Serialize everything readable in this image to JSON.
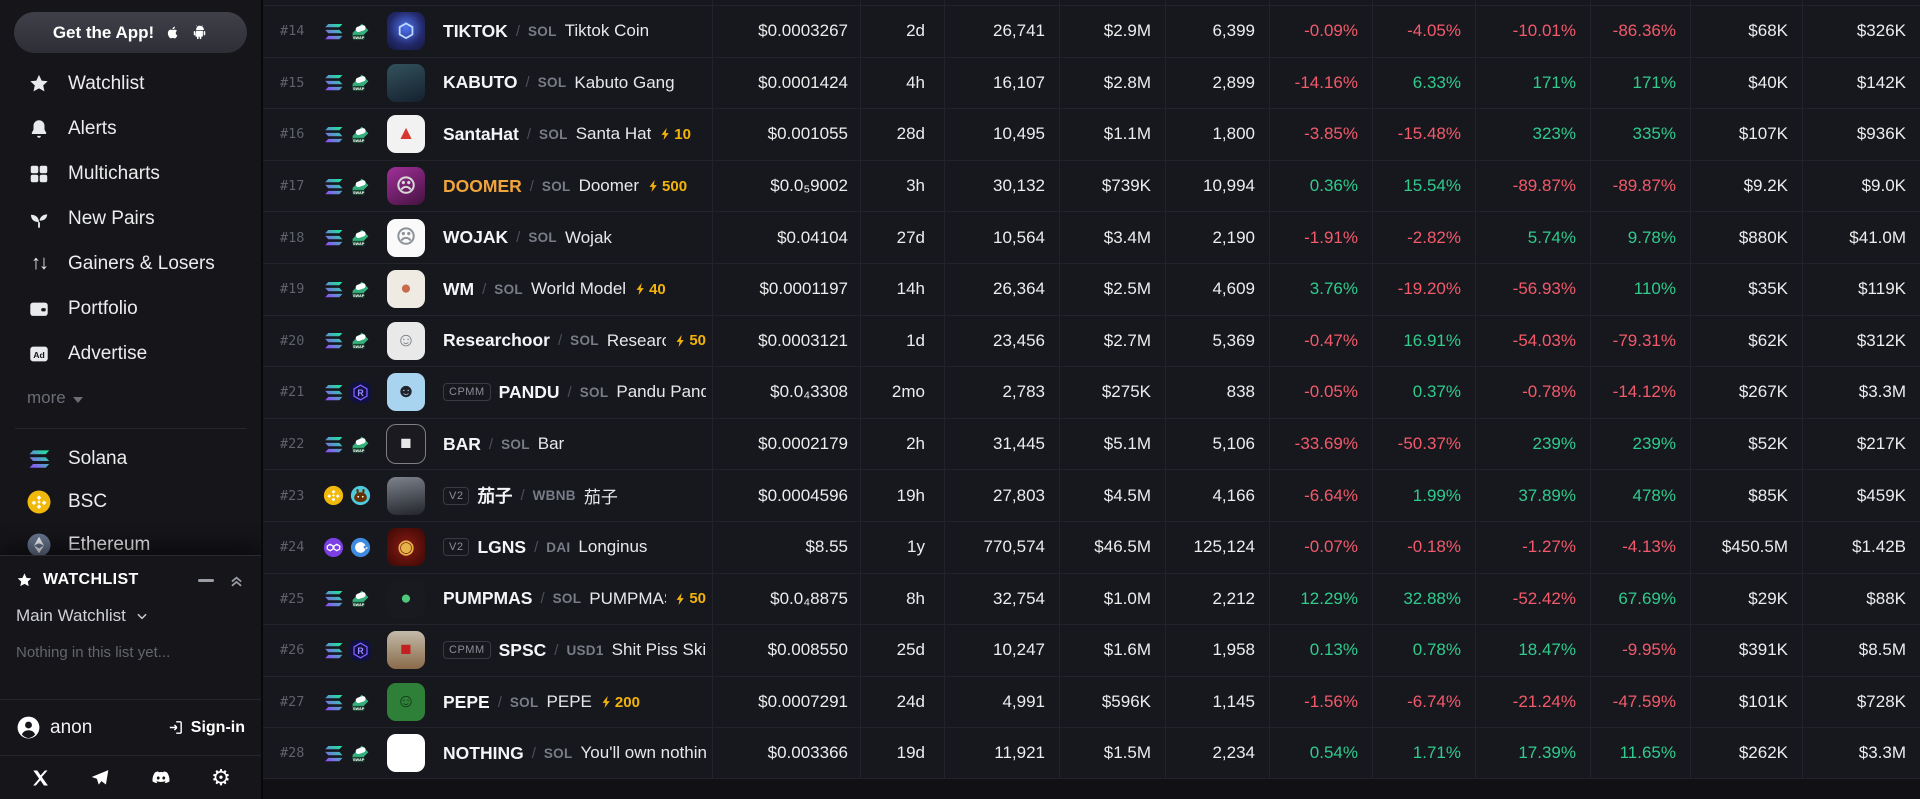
{
  "sidebar": {
    "get_app": {
      "label": "Get the App!"
    },
    "nav": [
      {
        "icon": "star-icon",
        "label": "Watchlist"
      },
      {
        "icon": "bell-icon",
        "label": "Alerts"
      },
      {
        "icon": "grid-icon",
        "label": "Multicharts"
      },
      {
        "icon": "sprout-icon",
        "label": "New Pairs"
      },
      {
        "icon": "arrows-icon",
        "label": "Gainers & Losers"
      },
      {
        "icon": "wallet-icon",
        "label": "Portfolio"
      },
      {
        "icon": "ad-icon",
        "label": "Advertise"
      }
    ],
    "more_label": "more",
    "chains": [
      {
        "icon": "solana",
        "label": "Solana"
      },
      {
        "icon": "bsc",
        "label": "BSC"
      },
      {
        "icon": "ethereum",
        "label": "Ethereum"
      }
    ],
    "watchlist_panel": {
      "title": "WATCHLIST",
      "selector": "Main Watchlist",
      "empty": "Nothing in this list yet..."
    },
    "account": {
      "name": "anon",
      "signin_label": "Sign-in"
    }
  },
  "colors": {
    "green": "#2fcc8c",
    "red": "#f35a6a",
    "gold": "#f2b40c",
    "doomer_orange": "#f0a43c"
  },
  "table": {
    "rows": [
      {
        "rank": "#14",
        "chains": [
          "solana",
          "pumpswap"
        ],
        "badge": null,
        "symbol": "TIKTOK",
        "quote": "SOL",
        "name": "Tiktok Coin",
        "boost": null,
        "avatar": {
          "bg": "radial-gradient(circle at 50% 42%, #4f74f2 0%, #232a6b 58%, #12163a 100%)",
          "glyph": "⬡",
          "fg": "#bcd9ff"
        },
        "price": "$0.0003267",
        "age": "2d",
        "txns": "26,741",
        "volume": "$2.9M",
        "makers": "6,399",
        "m5": "-0.09%",
        "h1": "-4.05%",
        "h6": "-10.01%",
        "h24": "-86.36%",
        "liquidity": "$68K",
        "mcap": "$326K"
      },
      {
        "rank": "#15",
        "chains": [
          "solana",
          "pumpswap"
        ],
        "badge": null,
        "symbol": "KABUTO",
        "quote": "SOL",
        "name": "Kabuto Gang",
        "boost": null,
        "avatar": {
          "bg": "linear-gradient(160deg,#33535c 0%,#15202e 100%)",
          "glyph": "",
          "fg": "#fff"
        },
        "price": "$0.0001424",
        "age": "4h",
        "txns": "16,107",
        "volume": "$2.8M",
        "makers": "2,899",
        "m5": "-14.16%",
        "h1": "6.33%",
        "h6": "171%",
        "h24": "171%",
        "liquidity": "$40K",
        "mcap": "$142K"
      },
      {
        "rank": "#16",
        "chains": [
          "solana",
          "pumpswap"
        ],
        "badge": null,
        "symbol": "SantaHat",
        "quote": "SOL",
        "name": "Santa Hat",
        "boost": "10",
        "avatar": {
          "bg": "#f2f2f2",
          "glyph": "▲",
          "fg": "#d7372c"
        },
        "price": "$0.001055",
        "age": "28d",
        "txns": "10,495",
        "volume": "$1.1M",
        "makers": "1,800",
        "m5": "-3.85%",
        "h1": "-15.48%",
        "h6": "323%",
        "h24": "335%",
        "liquidity": "$107K",
        "mcap": "$936K"
      },
      {
        "rank": "#17",
        "chains": [
          "solana",
          "pumpswap"
        ],
        "badge": null,
        "symbol": "DOOMER",
        "symbol_color": "#f0a43c",
        "quote": "SOL",
        "name": "Doomer",
        "boost": "500",
        "avatar": {
          "bg": "linear-gradient(150deg,#a0309a 0%,#45123f 100%)",
          "glyph": "☹",
          "fg": "#d8d8d8"
        },
        "price": "$0.0₅9002",
        "age": "3h",
        "txns": "30,132",
        "volume": "$739K",
        "makers": "10,994",
        "m5": "0.36%",
        "h1": "15.54%",
        "h6": "-89.87%",
        "h24": "-89.87%",
        "liquidity": "$9.2K",
        "mcap": "$9.0K"
      },
      {
        "rank": "#18",
        "chains": [
          "solana",
          "pumpswap"
        ],
        "badge": null,
        "symbol": "WOJAK",
        "quote": "SOL",
        "name": "Wojak",
        "boost": null,
        "avatar": {
          "bg": "#fafafa",
          "glyph": "☹",
          "fg": "#8e939b"
        },
        "price": "$0.04104",
        "age": "27d",
        "txns": "10,564",
        "volume": "$3.4M",
        "makers": "2,190",
        "m5": "-1.91%",
        "h1": "-2.82%",
        "h6": "5.74%",
        "h24": "9.78%",
        "liquidity": "$880K",
        "mcap": "$41.0M"
      },
      {
        "rank": "#19",
        "chains": [
          "solana",
          "pumpswap"
        ],
        "badge": null,
        "symbol": "WM",
        "quote": "SOL",
        "name": "World Model",
        "boost": "40",
        "avatar": {
          "bg": "#efeae2",
          "glyph": "●",
          "fg": "#c86a4e"
        },
        "price": "$0.0001197",
        "age": "14h",
        "txns": "26,364",
        "volume": "$2.5M",
        "makers": "4,609",
        "m5": "3.76%",
        "h1": "-19.20%",
        "h6": "-56.93%",
        "h24": "110%",
        "liquidity": "$35K",
        "mcap": "$119K"
      },
      {
        "rank": "#20",
        "chains": [
          "solana",
          "pumpswap"
        ],
        "badge": null,
        "symbol": "Researchoor",
        "quote": "SOL",
        "name": "Researchoor",
        "boost": "50",
        "avatar": {
          "bg": "#e9e9e9",
          "glyph": "☺",
          "fg": "#7b7f86"
        },
        "price": "$0.0003121",
        "age": "1d",
        "txns": "23,456",
        "volume": "$2.7M",
        "makers": "5,369",
        "m5": "-0.47%",
        "h1": "16.91%",
        "h6": "-54.03%",
        "h24": "-79.31%",
        "liquidity": "$62K",
        "mcap": "$312K"
      },
      {
        "rank": "#21",
        "chains": [
          "solana",
          "raydium"
        ],
        "badge": "CPMM",
        "symbol": "PANDU",
        "quote": "SOL",
        "name": "Pandu Pandas",
        "boost": null,
        "avatar": {
          "bg": "#a9d4ef",
          "glyph": "☻",
          "fg": "#20242a"
        },
        "price": "$0.0₄3308",
        "age": "2mo",
        "txns": "2,783",
        "volume": "$275K",
        "makers": "838",
        "m5": "-0.05%",
        "h1": "0.37%",
        "h6": "-0.78%",
        "h24": "-14.12%",
        "liquidity": "$267K",
        "mcap": "$3.3M"
      },
      {
        "rank": "#22",
        "chains": [
          "solana",
          "pumpswap"
        ],
        "badge": null,
        "symbol": "BAR",
        "quote": "SOL",
        "name": "Bar",
        "boost": null,
        "avatar": {
          "bg": "#1a1a20",
          "glyph": "■",
          "fg": "#e8e8ea",
          "border": true
        },
        "price": "$0.0002179",
        "age": "2h",
        "txns": "31,445",
        "volume": "$5.1M",
        "makers": "5,106",
        "m5": "-33.69%",
        "h1": "-50.37%",
        "h6": "239%",
        "h24": "239%",
        "liquidity": "$52K",
        "mcap": "$217K"
      },
      {
        "rank": "#23",
        "chains": [
          "bsc",
          "pancakeswap"
        ],
        "badge": "V2",
        "symbol": "茄子",
        "quote": "WBNB",
        "name": "茄子",
        "boost": null,
        "avatar": {
          "bg": "linear-gradient(170deg,#7d828c 0%,#23252b 100%)",
          "glyph": "",
          "fg": "#fff"
        },
        "price": "$0.0004596",
        "age": "19h",
        "txns": "27,803",
        "volume": "$4.5M",
        "makers": "4,166",
        "m5": "-6.64%",
        "h1": "1.99%",
        "h6": "37.89%",
        "h24": "478%",
        "liquidity": "$85K",
        "mcap": "$459K"
      },
      {
        "rank": "#24",
        "chains": [
          "polygon",
          "quickswap"
        ],
        "badge": "V2",
        "symbol": "LGNS",
        "quote": "DAI",
        "name": "Longinus",
        "boost": null,
        "avatar": {
          "bg": "radial-gradient(circle at 50% 50%, #8a1b12 0%, #4a0c08 78%)",
          "glyph": "◉",
          "fg": "#e5b34a"
        },
        "price": "$8.55",
        "age": "1y",
        "txns": "770,574",
        "volume": "$46.5M",
        "makers": "125,124",
        "m5": "-0.07%",
        "h1": "-0.18%",
        "h6": "-1.27%",
        "h24": "-4.13%",
        "liquidity": "$450.5M",
        "mcap": "$1.42B"
      },
      {
        "rank": "#25",
        "chains": [
          "solana",
          "pumpswap"
        ],
        "badge": null,
        "symbol": "PUMPMAS",
        "quote": "SOL",
        "name": "PUMPMAS",
        "boost": "50",
        "avatar": {
          "bg": "#181a1f",
          "glyph": "●",
          "fg": "#4ec97c"
        },
        "price": "$0.0₄8875",
        "age": "8h",
        "txns": "32,754",
        "volume": "$1.0M",
        "makers": "2,212",
        "m5": "12.29%",
        "h1": "32.88%",
        "h6": "-52.42%",
        "h24": "67.69%",
        "liquidity": "$29K",
        "mcap": "$88K"
      },
      {
        "rank": "#26",
        "chains": [
          "solana",
          "raydium"
        ],
        "badge": "CPMM",
        "symbol": "SPSC",
        "quote": "USD1",
        "name": "Shit Piss Skin Can",
        "boost": null,
        "avatar": {
          "bg": "linear-gradient(180deg,#c2baa8 0%,#8a6b4a 100%)",
          "glyph": "■",
          "fg": "#c32020"
        },
        "price": "$0.008550",
        "age": "25d",
        "txns": "10,247",
        "volume": "$1.6M",
        "makers": "1,958",
        "m5": "0.13%",
        "h1": "0.78%",
        "h6": "18.47%",
        "h24": "-9.95%",
        "liquidity": "$391K",
        "mcap": "$8.5M"
      },
      {
        "rank": "#27",
        "chains": [
          "solana",
          "pumpswap"
        ],
        "badge": null,
        "symbol": "PEPE",
        "quote": "SOL",
        "name": "PEPE",
        "boost": "200",
        "avatar": {
          "bg": "#2e8038",
          "glyph": "☺",
          "fg": "#123c18"
        },
        "price": "$0.0007291",
        "age": "24d",
        "txns": "4,991",
        "volume": "$596K",
        "makers": "1,145",
        "m5": "-1.56%",
        "h1": "-6.74%",
        "h6": "-21.24%",
        "h24": "-47.59%",
        "liquidity": "$101K",
        "mcap": "$728K"
      },
      {
        "rank": "#28",
        "chains": [
          "solana",
          "pumpswap"
        ],
        "badge": null,
        "symbol": "NOTHING",
        "quote": "SOL",
        "name": "You'll own nothing & be",
        "boost": null,
        "avatar": {
          "bg": "#ffffff",
          "glyph": "",
          "fg": "#fff"
        },
        "price": "$0.003366",
        "age": "19d",
        "txns": "11,921",
        "volume": "$1.5M",
        "makers": "2,234",
        "m5": "0.54%",
        "h1": "1.71%",
        "h6": "17.39%",
        "h24": "11.65%",
        "liquidity": "$262K",
        "mcap": "$3.3M"
      }
    ]
  }
}
